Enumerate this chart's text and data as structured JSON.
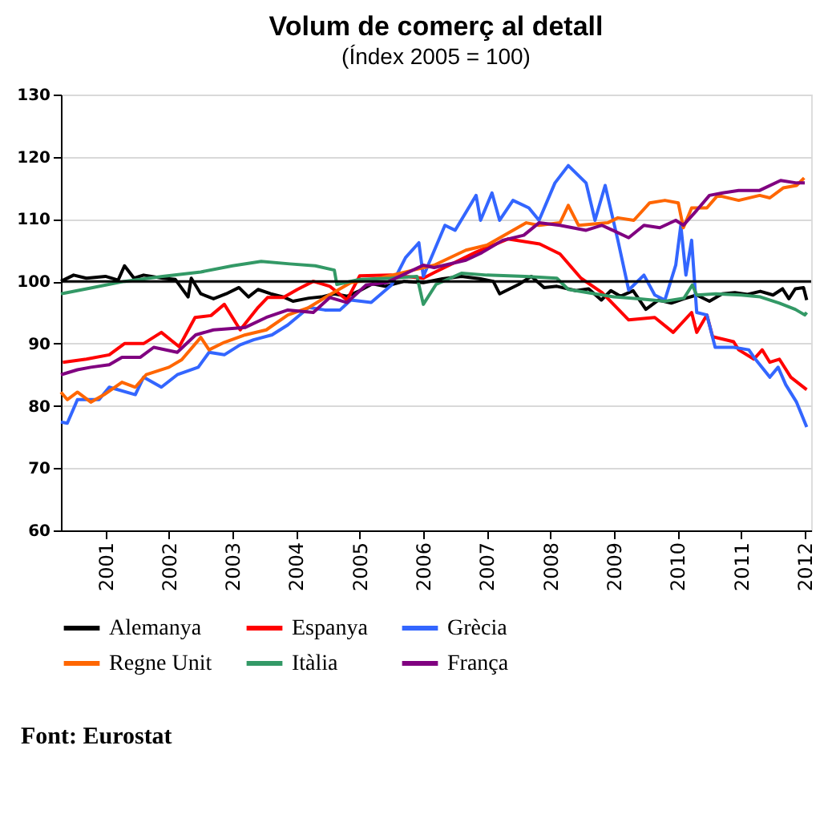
{
  "chart_data": {
    "type": "line",
    "title": "Volum de comerç al detall",
    "subtitle": "(Índex 2005 = 100)",
    "xlim": [
      2000.3,
      2012.1
    ],
    "xticks": [
      2001,
      2002,
      2003,
      2004,
      2005,
      2006,
      2007,
      2008,
      2009,
      2010,
      2011,
      2012
    ],
    "ylim": [
      60,
      130
    ],
    "yticks": [
      60,
      70,
      80,
      90,
      100,
      110,
      120,
      130
    ],
    "grid": "y",
    "legend": "bottom",
    "line_style": "solid",
    "marker": "none",
    "ref_lines": [
      {
        "axis": "y",
        "value": 100,
        "color": "#000000"
      }
    ],
    "annotations": [
      "Font: Eurostat"
    ],
    "series": [
      {
        "name": "Alemanya",
        "color": "#000000",
        "x": [
          2000.3,
          2000.5,
          2000.7,
          2001.0,
          2001.2,
          2001.3,
          2001.45,
          2001.6,
          2001.9,
          2002.1,
          2002.3,
          2002.35,
          2002.5,
          2002.7,
          2002.9,
          2003.1,
          2003.25,
          2003.4,
          2003.6,
          2003.8,
          2003.95,
          2004.2,
          2004.4,
          2004.6,
          2004.8,
          2005.0,
          2005.2,
          2005.4,
          2005.7,
          2006.0,
          2006.3,
          2006.6,
          2006.9,
          2007.1,
          2007.2,
          2007.5,
          2007.7,
          2007.9,
          2008.1,
          2008.4,
          2008.6,
          2008.8,
          2008.95,
          2009.1,
          2009.3,
          2009.5,
          2009.7,
          2009.9,
          2010.1,
          2010.3,
          2010.5,
          2010.7,
          2010.9,
          2011.1,
          2011.3,
          2011.5,
          2011.65,
          2011.75,
          2011.85,
          2011.98,
          2012.03
        ],
        "values": [
          100,
          101,
          100.5,
          100.8,
          100.2,
          102.5,
          100.5,
          101,
          100.5,
          100.3,
          97.5,
          100.5,
          98,
          97.2,
          98,
          99,
          97.5,
          98.7,
          98,
          97.5,
          96.8,
          97.3,
          97.5,
          98,
          97.6,
          98.5,
          99.6,
          99.2,
          100,
          99.8,
          100.4,
          100.8,
          100.4,
          100,
          98,
          99.5,
          100.8,
          99,
          99.2,
          98.5,
          98.8,
          97,
          98.5,
          97.6,
          98.5,
          95.5,
          97,
          96.5,
          97.2,
          97.8,
          96.8,
          98,
          98.2,
          97.9,
          98.4,
          97.8,
          98.8,
          97.2,
          98.8,
          99,
          97
        ]
      },
      {
        "name": "Espanya",
        "color": "#ff0000",
        "x": [
          2000.33,
          2000.7,
          2001.06,
          2001.3,
          2001.6,
          2001.88,
          2002.16,
          2002.41,
          2002.66,
          2002.87,
          2003.12,
          2003.4,
          2003.55,
          2003.8,
          2004.02,
          2004.27,
          2004.53,
          2004.8,
          2005.0,
          2005.5,
          2006.0,
          2006.17,
          2006.83,
          2007.33,
          2007.83,
          2008.15,
          2008.48,
          2008.81,
          2009.23,
          2009.64,
          2009.93,
          2010.22,
          2010.3,
          2010.46,
          2010.55,
          2010.88,
          2010.96,
          2011.2,
          2011.33,
          2011.45,
          2011.6,
          2011.78,
          2012.03
        ],
        "values": [
          87.0,
          87.5,
          88.2,
          90.0,
          90.0,
          91.8,
          89.5,
          94.2,
          94.5,
          96.3,
          92.2,
          95.8,
          97.4,
          97.4,
          98.7,
          100.0,
          99.2,
          97.0,
          100.9,
          101,
          100.5,
          101.4,
          104.7,
          106.8,
          106,
          104.4,
          100.5,
          98.2,
          93.8,
          94.2,
          91.8,
          95.0,
          91.8,
          94.6,
          91.1,
          90.3,
          89.0,
          87.5,
          89.0,
          87.0,
          87.5,
          84.6,
          82.6
        ]
      },
      {
        "name": "Grècia",
        "color": "#3366ff",
        "x": [
          2000.3,
          2000.4,
          2000.56,
          2000.9,
          2001.06,
          2001.47,
          2001.6,
          2001.88,
          2002.13,
          2002.46,
          2002.63,
          2002.87,
          2003.12,
          2003.33,
          2003.62,
          2003.87,
          2004.2,
          2004.45,
          2004.69,
          2004.86,
          2005.18,
          2005.5,
          2005.72,
          2005.93,
          2006.0,
          2006.34,
          2006.5,
          2006.83,
          2006.9,
          2007.08,
          2007.2,
          2007.41,
          2007.66,
          2007.82,
          2008.07,
          2008.28,
          2008.56,
          2008.7,
          2008.86,
          2009.06,
          2009.23,
          2009.47,
          2009.64,
          2009.8,
          2009.97,
          2010.05,
          2010.13,
          2010.22,
          2010.3,
          2010.46,
          2010.59,
          2010.88,
          2011.12,
          2011.2,
          2011.45,
          2011.58,
          2011.7,
          2011.87,
          2012.03
        ],
        "values": [
          77.4,
          77.2,
          81.0,
          81.0,
          83.0,
          81.8,
          84.6,
          83,
          85.0,
          86.2,
          88.6,
          88.2,
          89.8,
          90.6,
          91.4,
          93.0,
          95.8,
          95.4,
          95.4,
          97.0,
          96.6,
          99.4,
          103.8,
          106.2,
          100.8,
          109.0,
          108.2,
          113.8,
          109.8,
          114.2,
          109.8,
          113.0,
          111.8,
          109.8,
          115.8,
          118.6,
          115.8,
          109.8,
          115.4,
          106.6,
          98.6,
          101.0,
          97.8,
          97.0,
          102.6,
          109,
          101,
          106.6,
          95.0,
          94.6,
          89.4,
          89.4,
          89.0,
          87.8,
          84.6,
          86.2,
          83.4,
          80.6,
          76.6
        ]
      },
      {
        "name": "Regne Unit",
        "color": "#ff6600",
        "x": [
          2000.3,
          2000.4,
          2000.56,
          2000.77,
          2000.98,
          2001.26,
          2001.47,
          2001.64,
          2002.0,
          2002.2,
          2002.5,
          2002.63,
          2002.87,
          2003.2,
          2003.53,
          2003.87,
          2004.2,
          2004.52,
          2004.86,
          2005.35,
          2005.84,
          2006.17,
          2006.67,
          2007.0,
          2007.41,
          2007.62,
          2007.82,
          2008.15,
          2008.28,
          2008.44,
          2008.9,
          2009.06,
          2009.31,
          2009.56,
          2009.8,
          2010.01,
          2010.09,
          2010.22,
          2010.46,
          2010.63,
          2010.96,
          2011.29,
          2011.45,
          2011.66,
          2011.87,
          2011.99
        ],
        "values": [
          82.2,
          81.0,
          82.2,
          80.6,
          81.8,
          83.8,
          83.0,
          85.0,
          86.2,
          87.4,
          91.0,
          89.0,
          90.2,
          91.4,
          92.2,
          94.6,
          95.8,
          97.8,
          99.8,
          100.6,
          101.8,
          102.6,
          105.0,
          105.8,
          108.2,
          109.4,
          109,
          109.4,
          112.2,
          109,
          109.4,
          110.2,
          109.8,
          112.6,
          113.0,
          112.6,
          108.6,
          111.8,
          111.8,
          113.8,
          113.0,
          113.8,
          113.4,
          115.0,
          115.4,
          116.6
        ]
      },
      {
        "name": "Itàlia",
        "color": "#339966",
        "x": [
          2000.3,
          2000.8,
          2001.3,
          2001.9,
          2002.5,
          2003.0,
          2003.45,
          2003.9,
          2004.3,
          2004.6,
          2004.64,
          2005.0,
          2005.5,
          2005.9,
          2006.0,
          2006.2,
          2006.6,
          2007.0,
          2007.6,
          2008.1,
          2008.28,
          2008.7,
          2009.0,
          2009.4,
          2009.8,
          2010.1,
          2010.23,
          2010.3,
          2010.6,
          2011.0,
          2011.3,
          2011.6,
          2011.85,
          2012.0,
          2012.03
        ],
        "values": [
          98,
          99,
          100,
          100.8,
          101.5,
          102.5,
          103.2,
          102.8,
          102.5,
          101.8,
          99.5,
          100.3,
          100.5,
          100.8,
          96.3,
          99.5,
          101.3,
          101,
          100.8,
          100.5,
          98.7,
          98,
          97.5,
          97.2,
          96.8,
          97.3,
          99.4,
          97.8,
          98,
          97.8,
          97.5,
          96.5,
          95.5,
          94.6,
          95.0
        ]
      },
      {
        "name": "França",
        "color": "#800080",
        "x": [
          2000.3,
          2000.56,
          2000.77,
          2001.06,
          2001.26,
          2001.55,
          2001.76,
          2002.13,
          2002.42,
          2002.7,
          2002.95,
          2003.2,
          2003.53,
          2003.87,
          2004.27,
          2004.53,
          2004.8,
          2005.1,
          2005.42,
          2006.0,
          2006.17,
          2006.67,
          2006.92,
          2007.25,
          2007.58,
          2007.82,
          2008.15,
          2008.56,
          2008.81,
          2009.23,
          2009.47,
          2009.72,
          2009.97,
          2010.09,
          2010.3,
          2010.5,
          2010.71,
          2010.96,
          2011.29,
          2011.62,
          2011.87,
          2012.0
        ],
        "values": [
          85.0,
          85.8,
          86.2,
          86.6,
          87.8,
          87.8,
          89.4,
          88.6,
          91.4,
          92.2,
          92.4,
          92.6,
          94.2,
          95.4,
          95.0,
          97.4,
          96.6,
          99.4,
          99.8,
          102.6,
          102.2,
          103.4,
          104.6,
          106.6,
          107.4,
          109.4,
          109,
          108.2,
          109,
          107,
          109,
          108.6,
          109.8,
          109,
          111.4,
          113.8,
          114.2,
          114.6,
          114.6,
          116.2,
          115.8,
          115.8
        ]
      }
    ]
  }
}
